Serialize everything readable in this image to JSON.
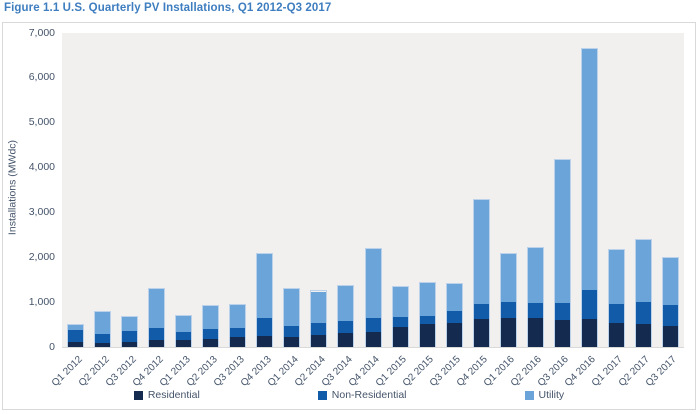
{
  "figure": {
    "title": "Figure 1.1 U.S. Quarterly PV Installations, Q1 2012-Q3 2017"
  },
  "chart_data": {
    "type": "bar",
    "stacked": true,
    "title": "U.S. Quarterly PV Installations, Q1 2012-Q3 2017",
    "ylabel": "Installations (MWdc)",
    "xlabel": "",
    "ylim": [
      0,
      7000
    ],
    "grid": false,
    "legend_position": "bottom",
    "yticks": [
      0,
      1000,
      2000,
      3000,
      4000,
      5000,
      6000,
      7000
    ],
    "ytick_labels": [
      "0",
      "1,000",
      "2,000",
      "3,000",
      "4,000",
      "5,000",
      "6,000",
      "7,000"
    ],
    "categories": [
      "Q1 2012",
      "Q2 2012",
      "Q3 2012",
      "Q4 2012",
      "Q1 2013",
      "Q2 2013",
      "Q3 2013",
      "Q4 2013",
      "Q1 2014",
      "Q2 2014",
      "Q3 2014",
      "Q4 2014",
      "Q1 2015",
      "Q2 2015",
      "Q3 2015",
      "Q4 2015",
      "Q1 2016",
      "Q2 2016",
      "Q3 2016",
      "Q4 2016",
      "Q1 2017",
      "Q2 2017",
      "Q3 2017"
    ],
    "series": [
      {
        "name": "Residential",
        "color": "#142a4e",
        "values": [
          110,
          100,
          110,
          170,
          170,
          190,
          220,
          245,
          230,
          270,
          320,
          340,
          450,
          510,
          540,
          620,
          655,
          655,
          600,
          635,
          545,
          520,
          470
        ]
      },
      {
        "name": "Non-Residential",
        "color": "#115ba8",
        "values": [
          290,
          200,
          250,
          265,
          165,
          215,
          215,
          400,
          240,
          275,
          260,
          320,
          230,
          200,
          280,
          335,
          355,
          335,
          380,
          640,
          415,
          495,
          470
        ]
      },
      {
        "name": "Utility",
        "color": "#6ba4d9",
        "values": [
          120,
          510,
          330,
          875,
          385,
          535,
          515,
          1455,
          850,
          715,
          810,
          1540,
          670,
          735,
          610,
          2345,
          1095,
          1230,
          3220,
          5385,
          1235,
          1395,
          1070
        ]
      }
    ],
    "totals": [
      520,
      810,
      690,
      1310,
      720,
      940,
      950,
      2100,
      1320,
      1260,
      1390,
      2200,
      1350,
      1445,
      1430,
      3300,
      2105,
      2220,
      4200,
      6660,
      2195,
      2410,
      2010
    ],
    "plot_background": "#f1f0ee",
    "text_color": "#44546a",
    "title_color": "#3e7dbf"
  }
}
